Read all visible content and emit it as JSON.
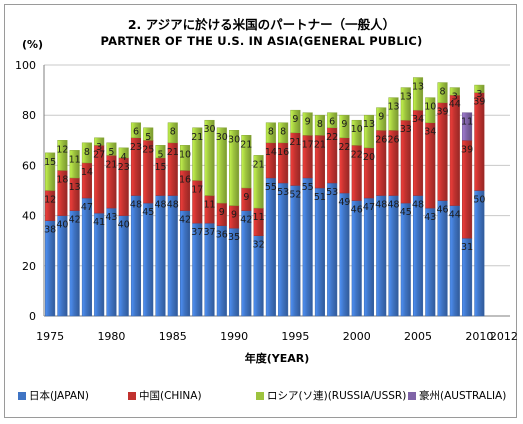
{
  "chart_data": {
    "type": "bar",
    "stacked": true,
    "title": "2. アジアに於ける米国のパートナー（一般人）",
    "subtitle": "PARTNER OF THE U.S. IN ASIA(GENERAL PUBLIC)",
    "ylabel": "(%)",
    "xlabel": "年度(YEAR)",
    "ylim": [
      0,
      100
    ],
    "yticks": [
      0,
      20,
      40,
      60,
      80,
      100
    ],
    "grid": true,
    "legend_position": "bottom",
    "categories": [
      "1975",
      "1976",
      "1977",
      "1978",
      "1979",
      "1980",
      "1981",
      "1982",
      "1983",
      "1984",
      "1985",
      "1986",
      "1987",
      "1988",
      "1989",
      "1990",
      "1991",
      "1992",
      "1993",
      "1994",
      "1995",
      "1996",
      "1997",
      "1998",
      "1999",
      "2000",
      "2001",
      "2002",
      "2003",
      "2004",
      "2005",
      "2006",
      "2007",
      "2008",
      "2009",
      "2010",
      "2011",
      "2012"
    ],
    "xtick_labels": [
      "1975",
      "",
      "",
      "",
      "",
      "1980",
      "",
      "",
      "",
      "",
      "1985",
      "",
      "",
      "",
      "",
      "1990",
      "",
      "",
      "",
      "",
      "1995",
      "",
      "",
      "",
      "",
      "2000",
      "",
      "",
      "",
      "",
      "2005",
      "",
      "",
      "",
      "",
      "2010",
      "",
      "2012"
    ],
    "series": [
      {
        "name": "日本(JAPAN)",
        "color": "#3f74c4",
        "values": [
          38,
          40,
          42,
          47,
          41,
          43,
          40,
          48,
          45,
          48,
          48,
          42,
          37,
          37,
          36,
          35,
          42,
          32,
          55,
          53,
          52,
          55,
          51,
          53,
          49,
          46,
          47,
          48,
          48,
          45,
          48,
          43,
          46,
          44,
          31,
          50,
          null,
          null
        ],
        "labels": [
          "38",
          "40",
          "42",
          "47",
          "41",
          "43",
          "40",
          "48",
          "45",
          "48",
          "48",
          "42",
          "37",
          "37",
          "36",
          "35",
          "42",
          "32",
          "55",
          "53",
          "52",
          "55",
          "51",
          "53",
          "49",
          "46",
          "47",
          "48",
          "48",
          "45",
          "48",
          "43",
          "46",
          "44",
          "31",
          "50",
          null,
          null
        ]
      },
      {
        "name": "中国(CHINA)",
        "color": "#c1322f",
        "values": [
          12,
          18,
          13,
          14,
          27,
          21,
          23,
          23,
          25,
          15,
          21,
          16,
          17,
          11,
          9,
          9,
          9,
          11,
          14,
          16,
          21,
          17,
          21,
          22,
          22,
          22,
          20,
          26,
          26,
          33,
          34,
          34,
          39,
          44,
          39,
          39,
          null,
          null
        ],
        "labels": [
          "12",
          "18",
          "13",
          "14",
          "27",
          "21",
          "23",
          "23",
          "25",
          "15",
          "21",
          "16",
          "17",
          "11",
          "9",
          "9",
          "9",
          "11",
          "14",
          "16",
          "21",
          "17",
          "21",
          "22",
          "22",
          "22",
          "20",
          "26",
          "26",
          "33",
          "34",
          "34",
          "39",
          "44",
          "39",
          "39",
          null,
          null
        ]
      },
      {
        "name": "ロシア(ソ連)(RUSSIA/USSR)",
        "color": "#9dc33e",
        "values": [
          15,
          12,
          11,
          8,
          3,
          5,
          4,
          6,
          5,
          5,
          8,
          10,
          21,
          30,
          30,
          30,
          21,
          21,
          8,
          8,
          9,
          9,
          8,
          6,
          9,
          10,
          13,
          9,
          13,
          13,
          13,
          10,
          8,
          3,
          0,
          3,
          null,
          null
        ],
        "labels": [
          "15",
          "12",
          "11",
          "8",
          "3",
          "5",
          "4",
          "6",
          "5",
          "5",
          "8",
          "10",
          "21",
          "30",
          "30",
          "30",
          "21",
          "21",
          "8",
          "8",
          "9",
          "9",
          "8",
          "6",
          "9",
          "10",
          "13",
          "9",
          "13",
          "13",
          "13",
          "10",
          "8",
          "3",
          "0",
          "3",
          null,
          null
        ]
      },
      {
        "name": "豪州(AUSTRALIA)",
        "color": "#8064a8",
        "values": [
          0,
          0,
          0,
          0,
          0,
          0,
          0,
          0,
          0,
          0,
          0,
          0,
          0,
          0,
          0,
          0,
          0,
          0,
          0,
          0,
          0,
          0,
          0,
          0,
          0,
          0,
          0,
          0,
          0,
          0,
          0,
          0,
          0,
          0,
          11,
          0,
          null,
          null
        ],
        "labels": [
          null,
          null,
          null,
          null,
          null,
          null,
          null,
          null,
          null,
          null,
          null,
          null,
          null,
          null,
          null,
          null,
          null,
          null,
          null,
          null,
          null,
          null,
          null,
          null,
          null,
          null,
          null,
          null,
          null,
          null,
          null,
          null,
          null,
          null,
          "11",
          null,
          null,
          null
        ]
      }
    ]
  }
}
